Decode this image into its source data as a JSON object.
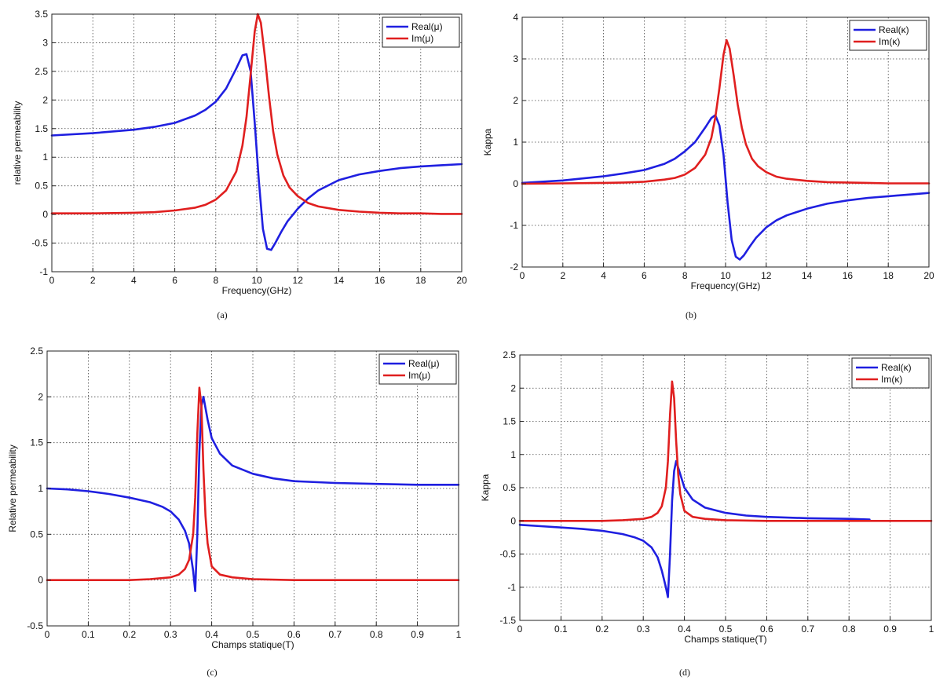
{
  "figure": {
    "chart_data": [
      {
        "id": "a",
        "type": "line",
        "caption": "(a)",
        "xlabel": "Frequency(GHz)",
        "ylabel": "relative permeability",
        "xlim": [
          0,
          20
        ],
        "ylim": [
          -1,
          3.5
        ],
        "xticks": [
          0,
          2,
          4,
          6,
          8,
          10,
          12,
          14,
          16,
          18,
          20
        ],
        "yticks": [
          -1,
          -0.5,
          0,
          0.5,
          1,
          1.5,
          2,
          2.5,
          3,
          3.5
        ],
        "xtick_labels": [
          "0",
          "2",
          "4",
          "6",
          "8",
          "10",
          "12",
          "14",
          "16",
          "18",
          "20"
        ],
        "ytick_labels": [
          "-1",
          "-0.5",
          "0",
          "0.5",
          "1",
          "1.5",
          "2",
          "2.5",
          "3",
          "3.5"
        ],
        "grid": true,
        "legend_position": "top-right",
        "series": [
          {
            "name": "Real(μ)",
            "color": "#1f1fe0",
            "x": [
              0,
              2,
              4,
              5,
              6,
              7,
              7.5,
              8,
              8.5,
              9,
              9.3,
              9.5,
              9.7,
              9.9,
              10.1,
              10.3,
              10.5,
              10.7,
              10.9,
              11.2,
              11.5,
              12,
              12.5,
              13,
              14,
              15,
              16,
              17,
              18,
              19,
              20
            ],
            "values": [
              1.38,
              1.42,
              1.48,
              1.53,
              1.6,
              1.73,
              1.83,
              1.97,
              2.2,
              2.55,
              2.78,
              2.8,
              2.5,
              1.6,
              0.6,
              -0.25,
              -0.6,
              -0.62,
              -0.5,
              -0.3,
              -0.12,
              0.1,
              0.28,
              0.42,
              0.6,
              0.7,
              0.76,
              0.81,
              0.84,
              0.86,
              0.88
            ]
          },
          {
            "name": "Im(μ)",
            "color": "#e01f1f",
            "x": [
              0,
              2,
              4,
              5,
              6,
              7,
              7.5,
              8,
              8.5,
              9,
              9.3,
              9.5,
              9.7,
              9.9,
              10.05,
              10.2,
              10.4,
              10.6,
              10.8,
              11,
              11.3,
              11.6,
              12,
              12.5,
              13,
              14,
              15,
              16,
              17,
              18,
              19,
              20
            ],
            "values": [
              0.02,
              0.02,
              0.03,
              0.04,
              0.07,
              0.12,
              0.17,
              0.26,
              0.42,
              0.75,
              1.2,
              1.7,
              2.45,
              3.2,
              3.5,
              3.35,
              2.75,
              2.05,
              1.45,
              1.05,
              0.68,
              0.47,
              0.32,
              0.2,
              0.14,
              0.08,
              0.05,
              0.03,
              0.02,
              0.02,
              0.01,
              0.01
            ]
          }
        ]
      },
      {
        "id": "b",
        "type": "line",
        "caption": "(b)",
        "xlabel": "Frequency(GHz)",
        "ylabel": "Kappa",
        "xlim": [
          0,
          20
        ],
        "ylim": [
          -2,
          4
        ],
        "xticks": [
          0,
          2,
          4,
          6,
          8,
          10,
          12,
          14,
          16,
          18,
          20
        ],
        "yticks": [
          -2,
          -1,
          0,
          1,
          2,
          3,
          4
        ],
        "xtick_labels": [
          "0",
          "2",
          "4",
          "6",
          "8",
          "10",
          "12",
          "14",
          "16",
          "18",
          "20"
        ],
        "ytick_labels": [
          "-2",
          "-1",
          "0",
          "1",
          "2",
          "3",
          "4"
        ],
        "grid": true,
        "legend_position": "top-right",
        "series": [
          {
            "name": "Real(κ)",
            "color": "#1f1fe0",
            "x": [
              0,
              2,
              4,
              5,
              6,
              7,
              7.5,
              8,
              8.5,
              9,
              9.3,
              9.5,
              9.7,
              9.9,
              10.1,
              10.3,
              10.5,
              10.7,
              10.9,
              11.2,
              11.5,
              12,
              12.5,
              13,
              14,
              15,
              16,
              17,
              18,
              19,
              20
            ],
            "values": [
              0.02,
              0.08,
              0.18,
              0.25,
              0.33,
              0.48,
              0.6,
              0.78,
              1.0,
              1.35,
              1.58,
              1.65,
              1.4,
              0.7,
              -0.45,
              -1.35,
              -1.75,
              -1.82,
              -1.72,
              -1.5,
              -1.3,
              -1.05,
              -0.88,
              -0.76,
              -0.6,
              -0.48,
              -0.4,
              -0.34,
              -0.3,
              -0.26,
              -0.22
            ]
          },
          {
            "name": "Im(κ)",
            "color": "#e01f1f",
            "x": [
              0,
              2,
              4,
              5,
              6,
              7,
              7.5,
              8,
              8.5,
              9,
              9.3,
              9.5,
              9.7,
              9.9,
              10.05,
              10.2,
              10.4,
              10.6,
              10.8,
              11,
              11.3,
              11.6,
              12,
              12.5,
              13,
              14,
              15,
              16,
              17,
              18,
              19,
              20
            ],
            "values": [
              0,
              0.01,
              0.02,
              0.03,
              0.05,
              0.1,
              0.14,
              0.22,
              0.38,
              0.7,
              1.1,
              1.6,
              2.3,
              3.1,
              3.45,
              3.25,
              2.6,
              1.9,
              1.35,
              0.95,
              0.6,
              0.42,
              0.28,
              0.17,
              0.12,
              0.07,
              0.04,
              0.03,
              0.02,
              0.01,
              0.01,
              0.01
            ]
          }
        ]
      },
      {
        "id": "c",
        "type": "line",
        "caption": "(c)",
        "xlabel": "Champs statique(T)",
        "ylabel": "Relative permeability",
        "xlim": [
          0,
          1
        ],
        "ylim": [
          -0.5,
          2.5
        ],
        "xticks": [
          0,
          0.1,
          0.2,
          0.3,
          0.4,
          0.5,
          0.6,
          0.7,
          0.8,
          0.9,
          1
        ],
        "yticks": [
          -0.5,
          0,
          0.5,
          1,
          1.5,
          2,
          2.5
        ],
        "xtick_labels": [
          "0",
          "0.1",
          "0.2",
          "0.3",
          "0.4",
          "0.5",
          "0.6",
          "0.7",
          "0.8",
          "0.9",
          "1"
        ],
        "ytick_labels": [
          "-0.5",
          "0",
          "0.5",
          "1",
          "1.5",
          "2",
          "2.5"
        ],
        "grid": true,
        "legend_position": "top-right",
        "series": [
          {
            "name": "Real(μ)",
            "color": "#1f1fe0",
            "x": [
              0,
              0.05,
              0.1,
              0.15,
              0.2,
              0.25,
              0.28,
              0.3,
              0.32,
              0.335,
              0.345,
              0.355,
              0.36,
              0.365,
              0.37,
              0.375,
              0.38,
              0.39,
              0.4,
              0.42,
              0.45,
              0.5,
              0.55,
              0.6,
              0.7,
              0.8,
              0.9,
              1.0
            ],
            "values": [
              1.0,
              0.99,
              0.97,
              0.94,
              0.9,
              0.85,
              0.8,
              0.75,
              0.66,
              0.54,
              0.4,
              0.1,
              -0.12,
              0.5,
              1.4,
              1.9,
              2.0,
              1.75,
              1.55,
              1.38,
              1.25,
              1.16,
              1.11,
              1.08,
              1.06,
              1.05,
              1.04,
              1.04
            ]
          },
          {
            "name": "Im(μ)",
            "color": "#e01f1f",
            "x": [
              0,
              0.1,
              0.2,
              0.25,
              0.3,
              0.32,
              0.335,
              0.345,
              0.355,
              0.36,
              0.365,
              0.37,
              0.375,
              0.38,
              0.385,
              0.39,
              0.4,
              0.42,
              0.45,
              0.5,
              0.6,
              0.7,
              0.8,
              0.9,
              1.0
            ],
            "values": [
              0,
              0,
              0,
              0.01,
              0.03,
              0.06,
              0.12,
              0.22,
              0.5,
              0.9,
              1.6,
              2.1,
              1.9,
              1.2,
              0.7,
              0.4,
              0.15,
              0.06,
              0.03,
              0.01,
              0,
              0,
              0,
              0,
              0
            ]
          }
        ]
      },
      {
        "id": "d",
        "type": "line",
        "caption": "(d)",
        "xlabel": "Champs statique(T)",
        "ylabel": "Kappa",
        "xlim": [
          0,
          1
        ],
        "ylim": [
          -1.5,
          2.5
        ],
        "xticks": [
          0,
          0.1,
          0.2,
          0.3,
          0.4,
          0.5,
          0.6,
          0.7,
          0.8,
          0.9,
          1
        ],
        "yticks": [
          -1.5,
          -1,
          -0.5,
          0,
          0.5,
          1,
          1.5,
          2,
          2.5
        ],
        "xtick_labels": [
          "0",
          "0.1",
          "0.2",
          "0.3",
          "0.4",
          "0.5",
          "0.6",
          "0.7",
          "0.8",
          "0.9",
          "1"
        ],
        "ytick_labels": [
          "-1.5",
          "-1",
          "-0.5",
          "0",
          "0.5",
          "1",
          "1.5",
          "2",
          "2.5"
        ],
        "grid": true,
        "legend_position": "top-right",
        "series": [
          {
            "name": "Real(κ)",
            "color": "#1f1fe0",
            "x": [
              0,
              0.05,
              0.1,
              0.15,
              0.2,
              0.25,
              0.28,
              0.3,
              0.32,
              0.335,
              0.345,
              0.355,
              0.36,
              0.365,
              0.37,
              0.375,
              0.38,
              0.39,
              0.4,
              0.42,
              0.45,
              0.5,
              0.55,
              0.6,
              0.7,
              0.8,
              0.85
            ],
            "values": [
              -0.06,
              -0.08,
              -0.1,
              -0.12,
              -0.15,
              -0.2,
              -0.25,
              -0.3,
              -0.4,
              -0.55,
              -0.75,
              -1.0,
              -1.15,
              -0.5,
              0.3,
              0.75,
              0.9,
              0.7,
              0.5,
              0.32,
              0.2,
              0.12,
              0.08,
              0.06,
              0.04,
              0.03,
              0.02
            ]
          },
          {
            "name": "Im(κ)",
            "color": "#e01f1f",
            "x": [
              0,
              0.1,
              0.2,
              0.25,
              0.3,
              0.32,
              0.335,
              0.345,
              0.355,
              0.36,
              0.365,
              0.37,
              0.375,
              0.38,
              0.385,
              0.39,
              0.4,
              0.42,
              0.45,
              0.5,
              0.6,
              0.7,
              0.8,
              0.9,
              1.0
            ],
            "values": [
              0,
              0,
              0,
              0.01,
              0.03,
              0.06,
              0.12,
              0.22,
              0.5,
              0.9,
              1.6,
              2.1,
              1.85,
              1.2,
              0.7,
              0.4,
              0.15,
              0.06,
              0.03,
              0.01,
              0,
              0,
              0,
              0,
              0
            ]
          }
        ]
      }
    ]
  }
}
